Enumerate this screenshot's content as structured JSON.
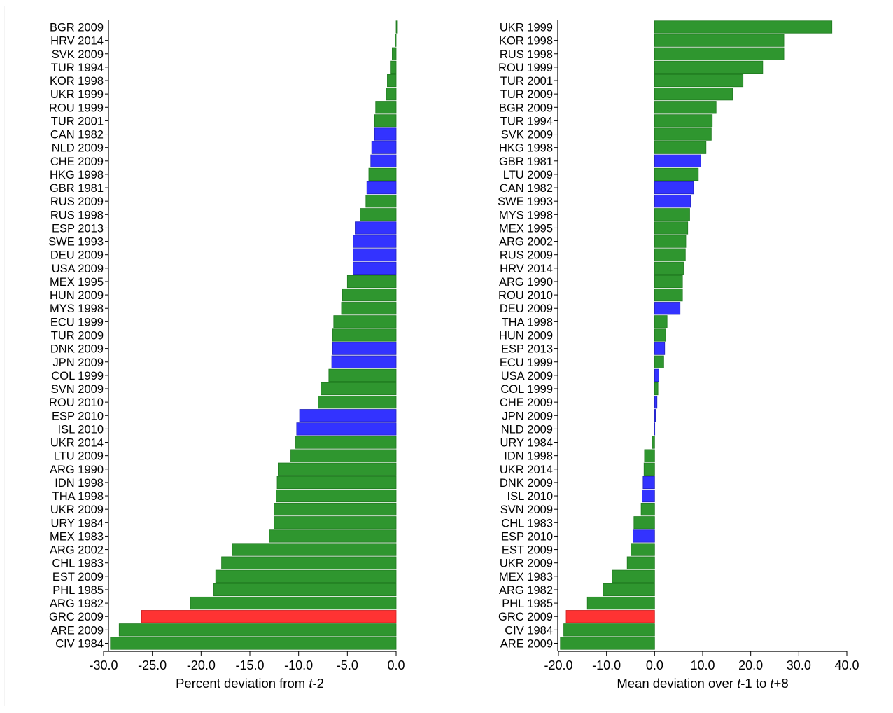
{
  "colors": {
    "green": "#2f962f",
    "green_edge": "#1f7a1f",
    "blue": "#3333ff",
    "blue_edge": "#2222bb",
    "red": "#ff3333",
    "red_edge": "#cc2222"
  },
  "chart_data": [
    {
      "type": "bar",
      "orientation": "horizontal",
      "xlabel_prefix": "Percent deviation from ",
      "xlabel_italic": "t",
      "xlabel_suffix": "-2",
      "xlim": [
        -30,
        0
      ],
      "xticks": [
        -30,
        -25,
        -20,
        -15,
        -10,
        -5,
        0
      ],
      "tick_labels": [
        "-30.0",
        "-25.0",
        "-20.0",
        "-15.0",
        "-10.0",
        "-5.0",
        "0.0"
      ],
      "categories": [
        "BGR 2009",
        "HRV 2014",
        "SVK 2009",
        "TUR 1994",
        "KOR 1998",
        "UKR 1999",
        "ROU 1999",
        "TUR 2001",
        "CAN 1982",
        "NLD 2009",
        "CHE 2009",
        "HKG 1998",
        "GBR 1981",
        "RUS 2009",
        "RUS 1998",
        "ESP 2013",
        "SWE 1993",
        "DEU 2009",
        "USA 2009",
        "MEX 1995",
        "HUN 2009",
        "MYS 1998",
        "ECU 1999",
        "TUR 2009",
        "DNK 2009",
        "JPN 2009",
        "COL 1999",
        "SVN 2009",
        "ROU 2010",
        "ESP 2010",
        "ISL 2010",
        "UKR 2014",
        "LTU 2009",
        "ARG 1990",
        "IDN 1998",
        "THA 1998",
        "UKR 2009",
        "URY 1984",
        "MEX 1983",
        "ARG 2002",
        "CHL 1983",
        "EST 2009",
        "PHL 1985",
        "ARG 1982",
        "GRC 2009",
        "ARE 2009",
        "CIV 1984"
      ],
      "values": [
        0.0,
        -0.1,
        -0.4,
        -0.6,
        -0.9,
        -1.0,
        -2.1,
        -2.2,
        -2.2,
        -2.5,
        -2.6,
        -2.8,
        -3.0,
        -3.1,
        -3.7,
        -4.2,
        -4.4,
        -4.4,
        -4.4,
        -5.0,
        -5.5,
        -5.6,
        -6.4,
        -6.5,
        -6.5,
        -6.6,
        -6.9,
        -7.7,
        -8.0,
        -9.9,
        -10.2,
        -10.3,
        -10.8,
        -12.1,
        -12.2,
        -12.3,
        -12.5,
        -12.5,
        -13.0,
        -16.8,
        -17.9,
        -18.5,
        -18.7,
        -21.1,
        -26.1,
        -28.4,
        -29.3
      ],
      "groups": [
        "g",
        "g",
        "g",
        "g",
        "g",
        "g",
        "g",
        "g",
        "b",
        "b",
        "b",
        "g",
        "b",
        "g",
        "g",
        "b",
        "b",
        "b",
        "b",
        "g",
        "g",
        "g",
        "g",
        "g",
        "b",
        "b",
        "g",
        "g",
        "g",
        "b",
        "b",
        "g",
        "g",
        "g",
        "g",
        "g",
        "g",
        "g",
        "g",
        "g",
        "g",
        "g",
        "g",
        "g",
        "r",
        "g",
        "g"
      ]
    },
    {
      "type": "bar",
      "orientation": "horizontal",
      "xlabel_prefix": "Mean deviation over ",
      "xlabel_italic": "t",
      "xlabel_mid": "-1 to ",
      "xlabel_italic2": "t",
      "xlabel_suffix": "+8",
      "xlim": [
        -20,
        40
      ],
      "xticks": [
        -20,
        -10,
        0,
        10,
        20,
        30,
        40
      ],
      "tick_labels": [
        "-20.0",
        "-10.0",
        "0.0",
        "10.0",
        "20.0",
        "30.0",
        "40.0"
      ],
      "categories": [
        "UKR 1999",
        "KOR 1998",
        "RUS 1998",
        "ROU 1999",
        "TUR 2001",
        "TUR 2009",
        "BGR 2009",
        "TUR 1994",
        "SVK 2009",
        "HKG 1998",
        "GBR 1981",
        "LTU 2009",
        "CAN 1982",
        "SWE 1993",
        "MYS 1998",
        "MEX 1995",
        "ARG 2002",
        "RUS 2009",
        "HRV 2014",
        "ARG 1990",
        "ROU 2010",
        "DEU 2009",
        "THA 1998",
        "HUN 2009",
        "ESP 2013",
        "ECU 1999",
        "USA 2009",
        "COL 1999",
        "CHE 2009",
        "JPN 2009",
        "NLD 2009",
        "URY 1984",
        "IDN 1998",
        "UKR 2014",
        "DNK 2009",
        "ISL 2010",
        "SVN 2009",
        "CHL 1983",
        "ESP 2010",
        "EST 2009",
        "UKR 2009",
        "MEX 1983",
        "ARG 1982",
        "PHL 1985",
        "GRC 2009",
        "CIV 1984",
        "ARE 2009"
      ],
      "values": [
        36.9,
        26.9,
        26.9,
        22.5,
        18.4,
        16.2,
        12.8,
        12.0,
        11.8,
        10.7,
        9.6,
        9.1,
        8.1,
        7.5,
        7.3,
        6.9,
        6.5,
        6.4,
        6.0,
        5.8,
        5.8,
        5.3,
        2.6,
        2.3,
        2.1,
        1.9,
        0.9,
        0.7,
        0.5,
        0.2,
        -0.1,
        -0.5,
        -2.1,
        -2.2,
        -2.4,
        -2.6,
        -2.8,
        -4.3,
        -4.5,
        -4.9,
        -5.7,
        -8.8,
        -10.7,
        -14.0,
        -18.4,
        -18.9,
        -19.6
      ],
      "groups": [
        "g",
        "g",
        "g",
        "g",
        "g",
        "g",
        "g",
        "g",
        "g",
        "g",
        "b",
        "g",
        "b",
        "b",
        "g",
        "g",
        "g",
        "g",
        "g",
        "g",
        "g",
        "b",
        "g",
        "g",
        "b",
        "g",
        "b",
        "g",
        "b",
        "b",
        "b",
        "g",
        "g",
        "g",
        "b",
        "b",
        "g",
        "g",
        "b",
        "g",
        "g",
        "g",
        "g",
        "g",
        "r",
        "g",
        "g"
      ]
    }
  ]
}
